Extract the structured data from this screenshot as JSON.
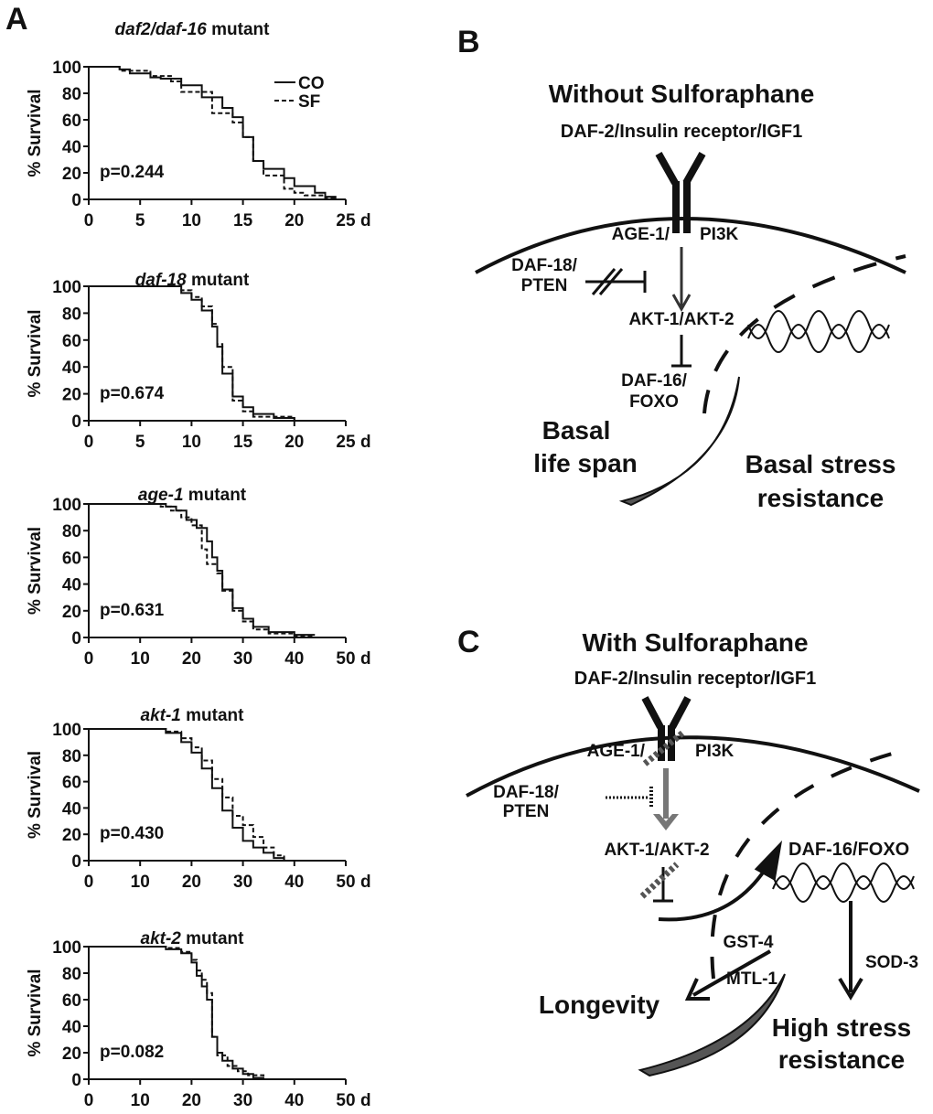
{
  "panel_labels": {
    "a": "A",
    "b": "B",
    "c": "C"
  },
  "chart_data": [
    {
      "type": "line",
      "title_italic": "daf2/daf-16",
      "title_rest": " mutant",
      "ylabel": "% Survival",
      "xunit": "d",
      "xlim": [
        0,
        25
      ],
      "ylim": [
        0,
        100
      ],
      "xticks": [
        0,
        5,
        10,
        15,
        20,
        25
      ],
      "yticks": [
        0,
        20,
        40,
        60,
        80,
        100
      ],
      "pvalue": "p=0.244",
      "legend": [
        {
          "name": "CO",
          "style": "solid"
        },
        {
          "name": "SF",
          "style": "dashed"
        }
      ],
      "series": [
        {
          "name": "CO",
          "points": [
            [
              0,
              100
            ],
            [
              3,
              98
            ],
            [
              4,
              95
            ],
            [
              6,
              92
            ],
            [
              7,
              91
            ],
            [
              9,
              86
            ],
            [
              11,
              77
            ],
            [
              13,
              69
            ],
            [
              14,
              62
            ],
            [
              15,
              47
            ],
            [
              16,
              29
            ],
            [
              17,
              23
            ],
            [
              19,
              16
            ],
            [
              20,
              10
            ],
            [
              22,
              5
            ],
            [
              23,
              2
            ],
            [
              24,
              0
            ]
          ]
        },
        {
          "name": "SF",
          "points": [
            [
              0,
              100
            ],
            [
              3,
              97
            ],
            [
              6,
              93
            ],
            [
              8,
              89
            ],
            [
              9,
              81
            ],
            [
              12,
              65
            ],
            [
              14,
              58
            ],
            [
              15,
              47
            ],
            [
              16,
              29
            ],
            [
              17,
              18
            ],
            [
              19,
              8
            ],
            [
              20,
              5
            ],
            [
              21,
              3
            ],
            [
              23,
              1
            ],
            [
              24,
              0
            ]
          ]
        }
      ]
    },
    {
      "type": "line",
      "title_italic": "daf-18",
      "title_rest": " mutant",
      "ylabel": "% Survival",
      "xunit": "d",
      "xlim": [
        0,
        25
      ],
      "ylim": [
        0,
        100
      ],
      "xticks": [
        0,
        5,
        10,
        15,
        20,
        25
      ],
      "yticks": [
        0,
        20,
        40,
        60,
        80,
        100
      ],
      "pvalue": "p=0.674",
      "series": [
        {
          "name": "CO",
          "points": [
            [
              0,
              100
            ],
            [
              9,
              95
            ],
            [
              10,
              90
            ],
            [
              11,
              82
            ],
            [
              12,
              70
            ],
            [
              12.5,
              55
            ],
            [
              13,
              35
            ],
            [
              14,
              18
            ],
            [
              15,
              10
            ],
            [
              16,
              5
            ],
            [
              18,
              2
            ],
            [
              20,
              0
            ]
          ]
        },
        {
          "name": "SF",
          "points": [
            [
              0,
              100
            ],
            [
              9,
              97
            ],
            [
              10,
              92
            ],
            [
              11,
              85
            ],
            [
              12,
              72
            ],
            [
              12.5,
              57
            ],
            [
              13,
              40
            ],
            [
              14,
              15
            ],
            [
              15,
              7
            ],
            [
              16,
              3
            ],
            [
              20,
              0
            ]
          ]
        }
      ]
    },
    {
      "type": "line",
      "title_italic": "age-1",
      "title_rest": " mutant",
      "ylabel": "% Survival",
      "xunit": "d",
      "xlim": [
        0,
        50
      ],
      "ylim": [
        0,
        100
      ],
      "xticks": [
        0,
        10,
        20,
        30,
        40,
        50
      ],
      "yticks": [
        0,
        20,
        40,
        60,
        80,
        100
      ],
      "pvalue": "p=0.631",
      "series": [
        {
          "name": "CO",
          "points": [
            [
              0,
              100
            ],
            [
              15,
              98
            ],
            [
              17,
              95
            ],
            [
              19,
              88
            ],
            [
              21,
              82
            ],
            [
              23,
              72
            ],
            [
              24,
              60
            ],
            [
              25,
              50
            ],
            [
              26,
              36
            ],
            [
              28,
              22
            ],
            [
              30,
              14
            ],
            [
              32,
              8
            ],
            [
              35,
              4
            ],
            [
              40,
              2
            ],
            [
              44,
              2
            ]
          ]
        },
        {
          "name": "SF",
          "points": [
            [
              0,
              100
            ],
            [
              14,
              98
            ],
            [
              16,
              95
            ],
            [
              18,
              90
            ],
            [
              20,
              84
            ],
            [
              22,
              66
            ],
            [
              23,
              55
            ],
            [
              25,
              48
            ],
            [
              26,
              35
            ],
            [
              28,
              20
            ],
            [
              30,
              12
            ],
            [
              32,
              6
            ],
            [
              35,
              3
            ],
            [
              40,
              1
            ],
            [
              44,
              1
            ]
          ]
        }
      ]
    },
    {
      "type": "line",
      "title_italic": "akt-1",
      "title_rest": " mutant",
      "ylabel": "% Survival",
      "xunit": "d",
      "xlim": [
        0,
        50
      ],
      "ylim": [
        0,
        100
      ],
      "xticks": [
        0,
        10,
        20,
        30,
        40,
        50
      ],
      "yticks": [
        0,
        20,
        40,
        60,
        80,
        100
      ],
      "pvalue": "p=0.430",
      "series": [
        {
          "name": "CO",
          "points": [
            [
              0,
              100
            ],
            [
              15,
              97
            ],
            [
              18,
              90
            ],
            [
              20,
              82
            ],
            [
              22,
              70
            ],
            [
              24,
              55
            ],
            [
              26,
              38
            ],
            [
              28,
              25
            ],
            [
              30,
              15
            ],
            [
              32,
              10
            ],
            [
              34,
              6
            ],
            [
              36,
              2
            ],
            [
              38,
              0
            ]
          ]
        },
        {
          "name": "SF",
          "points": [
            [
              0,
              100
            ],
            [
              15,
              98
            ],
            [
              18,
              93
            ],
            [
              20,
              86
            ],
            [
              22,
              76
            ],
            [
              24,
              62
            ],
            [
              26,
              48
            ],
            [
              28,
              34
            ],
            [
              30,
              27
            ],
            [
              32,
              18
            ],
            [
              34,
              10
            ],
            [
              36,
              4
            ],
            [
              38,
              0
            ]
          ]
        }
      ]
    },
    {
      "type": "line",
      "title_italic": "akt-2",
      "title_rest": " mutant",
      "ylabel": "% Survival",
      "xunit": "d",
      "xlim": [
        0,
        50
      ],
      "ylim": [
        0,
        100
      ],
      "xticks": [
        0,
        10,
        20,
        30,
        40,
        50
      ],
      "yticks": [
        0,
        20,
        40,
        60,
        80,
        100
      ],
      "pvalue": "p=0.082",
      "series": [
        {
          "name": "CO",
          "points": [
            [
              0,
              100
            ],
            [
              15,
              98
            ],
            [
              18,
              95
            ],
            [
              20,
              88
            ],
            [
              21,
              78
            ],
            [
              22,
              70
            ],
            [
              23,
              60
            ],
            [
              24,
              32
            ],
            [
              25,
              20
            ],
            [
              26,
              14
            ],
            [
              28,
              8
            ],
            [
              30,
              4
            ],
            [
              32,
              1
            ],
            [
              34,
              0
            ]
          ]
        },
        {
          "name": "SF",
          "points": [
            [
              0,
              100
            ],
            [
              15,
              99
            ],
            [
              18,
              96
            ],
            [
              20,
              90
            ],
            [
              21,
              82
            ],
            [
              22,
              75
            ],
            [
              23,
              65
            ],
            [
              24,
              32
            ],
            [
              25,
              18
            ],
            [
              27,
              10
            ],
            [
              29,
              6
            ],
            [
              31,
              3
            ],
            [
              34,
              0
            ]
          ]
        }
      ]
    }
  ],
  "diagram_b": {
    "title": "Without Sulforaphane",
    "receptor": "DAF-2/Insulin receptor/IGF1",
    "age1": "AGE-1/",
    "pi3k": "PI3K",
    "daf18_1": "DAF-18/",
    "daf18_2": "PTEN",
    "akt": "AKT-1/AKT-2",
    "daf16_1": "DAF-16/",
    "daf16_2": "FOXO",
    "life_1": "Basal",
    "life_2": "life span",
    "stress_1": "Basal stress",
    "stress_2": "resistance"
  },
  "diagram_c": {
    "title": "With Sulforaphane",
    "receptor": "DAF-2/Insulin receptor/IGF1",
    "age1": "AGE-1/",
    "pi3k": "PI3K",
    "daf18_1": "DAF-18/",
    "daf18_2": "PTEN",
    "akt": "AKT-1/AKT-2",
    "daf16": "DAF-16/FOXO",
    "gst": "GST-4",
    "mtl": "MTL-1",
    "sod": "SOD-3",
    "longevity": "Longevity",
    "stress_1": "High stress",
    "stress_2": "resistance"
  }
}
